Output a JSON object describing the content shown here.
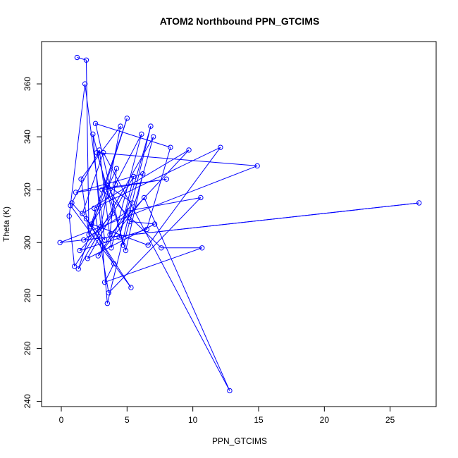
{
  "chart_data": {
    "type": "line",
    "title": "ATOM2 Northbound PPN_GTCIMS",
    "xlabel": "PPN_GTCIMS",
    "ylabel": "Theta (K)",
    "xlim": [
      -1.5,
      28.5
    ],
    "ylim": [
      238,
      376
    ],
    "x_ticks": [
      0,
      5,
      10,
      15,
      20,
      25
    ],
    "y_ticks": [
      240,
      260,
      280,
      300,
      320,
      340,
      360
    ],
    "grid": false,
    "legend": "none",
    "series_color": "#0000ff",
    "series": [
      {
        "marker": "open-circle",
        "x": [
          1.2,
          1.9,
          2.1,
          1.5,
          4.5,
          3.0,
          1.0,
          0.6,
          1.8,
          3.3,
          0.8,
          2.9,
          3.8,
          6.1,
          4.1,
          2.2,
          5.0,
          1.3,
          7.0,
          4.7,
          2.6,
          8.3,
          6.5,
          1.4,
          3.9,
          2.4,
          3.5,
          6.8,
          4.4,
          5.5,
          2.0,
          7.1,
          5.2,
          3.4,
          5.4,
          2.8,
          6.3,
          12.8,
          3.2,
          1.6,
          9.7,
          3.7,
          4.2,
          2.3,
          6.6,
          12.1,
          2.5,
          3.6,
          10.6,
          5.1,
          1.7,
          27.2,
          -0.1,
          14.9,
          2.7,
          4.9,
          6.2,
          1.1,
          8.0,
          3.1,
          7.6,
          10.7,
          3.3,
          4.0,
          1.9,
          5.3,
          0.7
        ],
        "y": [
          370,
          369,
          303,
          324,
          344,
          306,
          291,
          310,
          360,
          301,
          315,
          335,
          298,
          341,
          322,
          306,
          347,
          290,
          340,
          299,
          345,
          336,
          305,
          297,
          311,
          341,
          277,
          344,
          302,
          325,
          294,
          307,
          308,
          322,
          315,
          295,
          317,
          244,
          334,
          311,
          335,
          303,
          328,
          307,
          299,
          336,
          313,
          281,
          317,
          312,
          301,
          315,
          300,
          329,
          334,
          297,
          326,
          319,
          324,
          320,
          298,
          298,
          285,
          292,
          309,
          283,
          314
        ]
      }
    ]
  }
}
